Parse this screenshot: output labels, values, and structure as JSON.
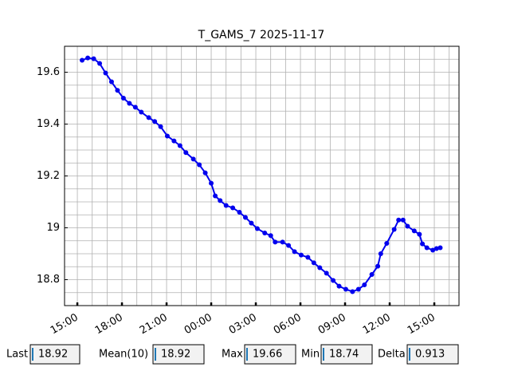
{
  "chart_data": {
    "type": "line",
    "title": "T_GAMS_7 2025-11-17",
    "color": "#0000ee",
    "grid": true,
    "xlim": [
      14.14,
      40.66
    ],
    "ylim": [
      18.7,
      19.7
    ],
    "xticks": [
      {
        "value": 15,
        "label": "15:00"
      },
      {
        "value": 18,
        "label": "18:00"
      },
      {
        "value": 21,
        "label": "21:00"
      },
      {
        "value": 24,
        "label": "00:00"
      },
      {
        "value": 27,
        "label": "03:00"
      },
      {
        "value": 30,
        "label": "06:00"
      },
      {
        "value": 33,
        "label": "09:00"
      },
      {
        "value": 36,
        "label": "12:00"
      },
      {
        "value": 39,
        "label": "15:00"
      }
    ],
    "yticks": [
      18.8,
      19.0,
      19.2,
      19.4,
      19.6
    ],
    "xminorticks": [
      15,
      16,
      17,
      18,
      19,
      20,
      21,
      22,
      23,
      24,
      25,
      26,
      27,
      28,
      29,
      30,
      31,
      32,
      33,
      34,
      35,
      36,
      37,
      38,
      39,
      40
    ],
    "yminorticks": [
      18.7,
      18.75,
      18.8,
      18.85,
      18.9,
      18.95,
      19.0,
      19.05,
      19.1,
      19.15,
      19.2,
      19.25,
      19.3,
      19.35,
      19.4,
      19.45,
      19.5,
      19.55,
      19.6,
      19.65,
      19.7
    ],
    "x": [
      15.32,
      15.7,
      16.1,
      16.5,
      16.9,
      17.3,
      17.7,
      18.1,
      18.5,
      18.9,
      19.3,
      19.8,
      20.2,
      20.6,
      21.05,
      21.5,
      21.9,
      22.3,
      22.8,
      23.2,
      23.6,
      24.0,
      24.27,
      24.6,
      25.0,
      25.45,
      25.9,
      26.3,
      26.7,
      27.1,
      27.6,
      28.0,
      28.3,
      28.8,
      29.2,
      29.6,
      30.05,
      30.5,
      30.9,
      31.3,
      31.75,
      32.2,
      32.6,
      33.05,
      33.5,
      33.9,
      34.3,
      34.8,
      35.2,
      35.4,
      35.8,
      36.3,
      36.6,
      36.9,
      37.2,
      37.65,
      38.0,
      38.2,
      38.5,
      38.9,
      39.15,
      39.4
    ],
    "values": [
      19.646,
      19.655,
      19.652,
      19.634,
      19.597,
      19.563,
      19.53,
      19.5,
      19.48,
      19.465,
      19.446,
      19.425,
      19.41,
      19.39,
      19.354,
      19.335,
      19.317,
      19.29,
      19.265,
      19.243,
      19.212,
      19.172,
      19.123,
      19.105,
      19.086,
      19.077,
      19.06,
      19.04,
      19.018,
      18.997,
      18.98,
      18.97,
      18.945,
      18.945,
      18.932,
      18.908,
      18.895,
      18.886,
      18.865,
      18.846,
      18.825,
      18.797,
      18.775,
      18.763,
      18.754,
      18.763,
      18.78,
      18.82,
      18.852,
      18.9,
      18.94,
      18.994,
      19.03,
      19.03,
      19.006,
      18.988,
      18.975,
      18.938,
      18.923,
      18.914,
      18.92,
      18.923
    ]
  },
  "controls": [
    {
      "label": "Last",
      "value": "18.92"
    },
    {
      "label": "Mean(10)",
      "value": "18.92"
    },
    {
      "label": "Max",
      "value": "19.66"
    },
    {
      "label": "Min",
      "value": "18.74"
    },
    {
      "label": "Delta",
      "value": "0.913"
    }
  ]
}
